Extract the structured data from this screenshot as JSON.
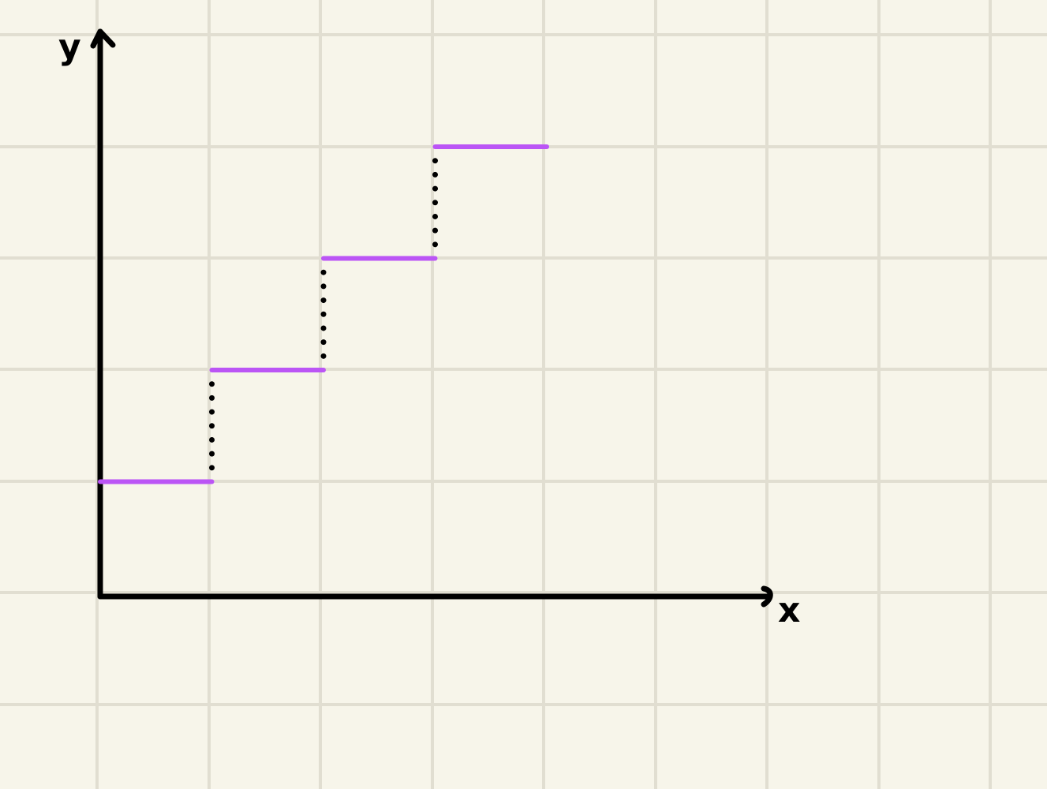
{
  "colors": {
    "background": "#f7f5ea",
    "grid": "#e1ded1",
    "axis": "#000000",
    "step": "#bb55f5",
    "connector": "#000000"
  },
  "chart_data": {
    "type": "line",
    "style": "step-function",
    "grid": true,
    "xlabel": "x",
    "ylabel": "y",
    "xlim": [
      0,
      6
    ],
    "ylim": [
      0,
      5
    ],
    "series": [
      {
        "segments": [
          {
            "x_start": 0,
            "x_end": 1,
            "y": 1
          },
          {
            "x_start": 1,
            "x_end": 2,
            "y": 2
          },
          {
            "x_start": 2,
            "x_end": 3,
            "y": 3
          },
          {
            "x_start": 3,
            "x_end": 4,
            "y": 4
          }
        ],
        "connectors": "dotted-vertical"
      }
    ]
  }
}
